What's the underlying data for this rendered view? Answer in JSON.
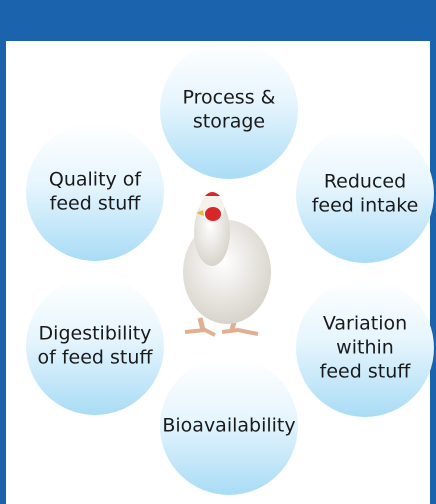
{
  "nodes": [
    {
      "lines": [
        "Process &",
        "storage"
      ]
    },
    {
      "lines": [
        "Reduced",
        "feed intake"
      ]
    },
    {
      "lines": [
        "Variation",
        "within",
        "feed stuff"
      ]
    },
    {
      "lines": [
        "Bioavailability"
      ]
    },
    {
      "lines": [
        "Digestibility",
        "of feed stuff"
      ]
    },
    {
      "lines": [
        "Quality of",
        "feed stuff"
      ]
    }
  ]
}
